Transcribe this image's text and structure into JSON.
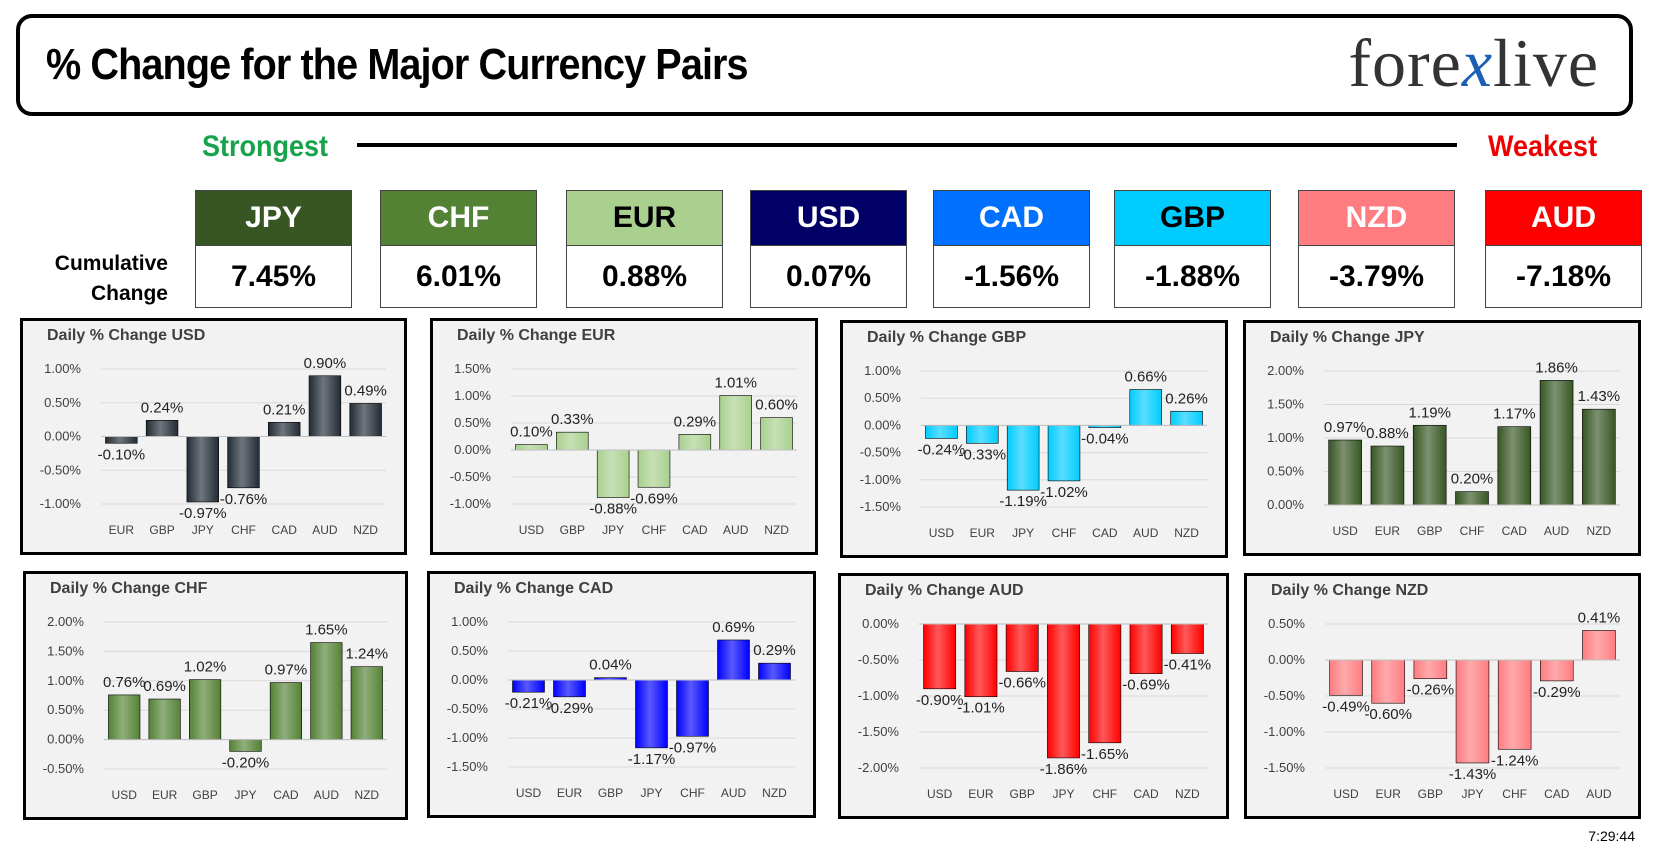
{
  "header": {
    "title": "% Change for the Major Currency Pairs",
    "logo_left": "fore",
    "logo_x": "x",
    "logo_right": "live"
  },
  "scale": {
    "strongest": "Strongest",
    "weakest": "Weakest"
  },
  "cumulative": {
    "label_line1": "Cumulative",
    "label_line2": "Change"
  },
  "currencies": [
    {
      "name": "JPY",
      "value": "7.45%",
      "color": "#375623",
      "text_color": "#ffffff"
    },
    {
      "name": "CHF",
      "value": "6.01%",
      "color": "#548235",
      "text_color": "#ffffff"
    },
    {
      "name": "EUR",
      "value": "0.88%",
      "color": "#a9d08e",
      "text_color": "#000000"
    },
    {
      "name": "USD",
      "value": "0.07%",
      "color": "#000066",
      "text_color": "#ffffff"
    },
    {
      "name": "CAD",
      "value": "-1.56%",
      "color": "#0070ff",
      "text_color": "#ffffff"
    },
    {
      "name": "GBP",
      "value": "-1.88%",
      "color": "#00ccff",
      "text_color": "#000000"
    },
    {
      "name": "NZD",
      "value": "-3.79%",
      "color": "#ff7c80",
      "text_color": "#ffffff"
    },
    {
      "name": "AUD",
      "value": "-7.18%",
      "color": "#ff0000",
      "text_color": "#ffffff"
    }
  ],
  "timestamp": "7:29:44",
  "chart_data": [
    {
      "type": "bar",
      "title": "Daily % Change USD",
      "categories": [
        "EUR",
        "GBP",
        "JPY",
        "CHF",
        "CAD",
        "AUD",
        "NZD"
      ],
      "values": [
        -0.1,
        0.24,
        -0.97,
        -0.76,
        0.21,
        0.9,
        0.49
      ],
      "ylim": [
        -1.0,
        1.0
      ],
      "yticks": [
        "1.00%",
        "0.50%",
        "0.00%",
        "-0.50%",
        "-1.00%"
      ],
      "color": "#222b35"
    },
    {
      "type": "bar",
      "title": "Daily % Change EUR",
      "categories": [
        "USD",
        "GBP",
        "JPY",
        "CHF",
        "CAD",
        "AUD",
        "NZD"
      ],
      "values": [
        0.1,
        0.33,
        -0.88,
        -0.69,
        0.29,
        1.01,
        0.6
      ],
      "ylim": [
        -1.0,
        1.5
      ],
      "yticks": [
        "1.50%",
        "1.00%",
        "0.50%",
        "0.00%",
        "-0.50%",
        "-1.00%"
      ],
      "color": "#a9d08e"
    },
    {
      "type": "bar",
      "title": "Daily % Change GBP",
      "categories": [
        "USD",
        "EUR",
        "JPY",
        "CHF",
        "CAD",
        "AUD",
        "NZD"
      ],
      "values": [
        -0.24,
        -0.33,
        -1.19,
        -1.02,
        -0.04,
        0.66,
        0.26
      ],
      "ylim": [
        -1.5,
        1.0
      ],
      "yticks": [
        "1.00%",
        "0.50%",
        "0.00%",
        "-0.50%",
        "-1.00%",
        "-1.50%"
      ],
      "color": "#00ccff"
    },
    {
      "type": "bar",
      "title": "Daily % Change JPY",
      "categories": [
        "USD",
        "EUR",
        "GBP",
        "CHF",
        "CAD",
        "AUD",
        "NZD"
      ],
      "values": [
        0.97,
        0.88,
        1.19,
        0.2,
        1.17,
        1.86,
        1.43
      ],
      "ylim": [
        0.0,
        2.0
      ],
      "yticks": [
        "2.00%",
        "1.50%",
        "1.00%",
        "0.50%",
        "0.00%"
      ],
      "color": "#375623"
    },
    {
      "type": "bar",
      "title": "Daily % Change CHF",
      "categories": [
        "USD",
        "EUR",
        "GBP",
        "JPY",
        "CAD",
        "AUD",
        "NZD"
      ],
      "values": [
        0.76,
        0.69,
        1.02,
        -0.2,
        0.97,
        1.65,
        1.24
      ],
      "ylim": [
        -0.5,
        2.0
      ],
      "yticks": [
        "2.00%",
        "1.50%",
        "1.00%",
        "0.50%",
        "0.00%",
        "-0.50%"
      ],
      "color": "#548235"
    },
    {
      "type": "bar",
      "title": "Daily % Change CAD",
      "categories": [
        "USD",
        "EUR",
        "GBP",
        "JPY",
        "CHF",
        "AUD",
        "NZD"
      ],
      "values": [
        -0.21,
        -0.29,
        0.04,
        -1.17,
        -0.97,
        0.69,
        0.29
      ],
      "ylim": [
        -1.5,
        1.0
      ],
      "yticks": [
        "1.00%",
        "0.50%",
        "0.00%",
        "-0.50%",
        "-1.00%",
        "-1.50%"
      ],
      "color": "#0000ff"
    },
    {
      "type": "bar",
      "title": "Daily % Change AUD",
      "categories": [
        "USD",
        "EUR",
        "GBP",
        "JPY",
        "CHF",
        "CAD",
        "NZD"
      ],
      "values": [
        -0.9,
        -1.01,
        -0.66,
        -1.86,
        -1.65,
        -0.69,
        -0.41
      ],
      "ylim": [
        -2.0,
        0.0
      ],
      "yticks": [
        "0.00%",
        "-0.50%",
        "-1.00%",
        "-1.50%",
        "-2.00%"
      ],
      "color": "#ff0000"
    },
    {
      "type": "bar",
      "title": "Daily % Change NZD",
      "categories": [
        "USD",
        "EUR",
        "GBP",
        "JPY",
        "CHF",
        "CAD",
        "AUD"
      ],
      "values": [
        -0.49,
        -0.6,
        -0.26,
        -1.43,
        -1.24,
        -0.29,
        0.41
      ],
      "ylim": [
        -1.5,
        0.5
      ],
      "yticks": [
        "0.50%",
        "0.00%",
        "-0.50%",
        "-1.00%",
        "-1.50%"
      ],
      "color": "#ff7c80"
    }
  ]
}
